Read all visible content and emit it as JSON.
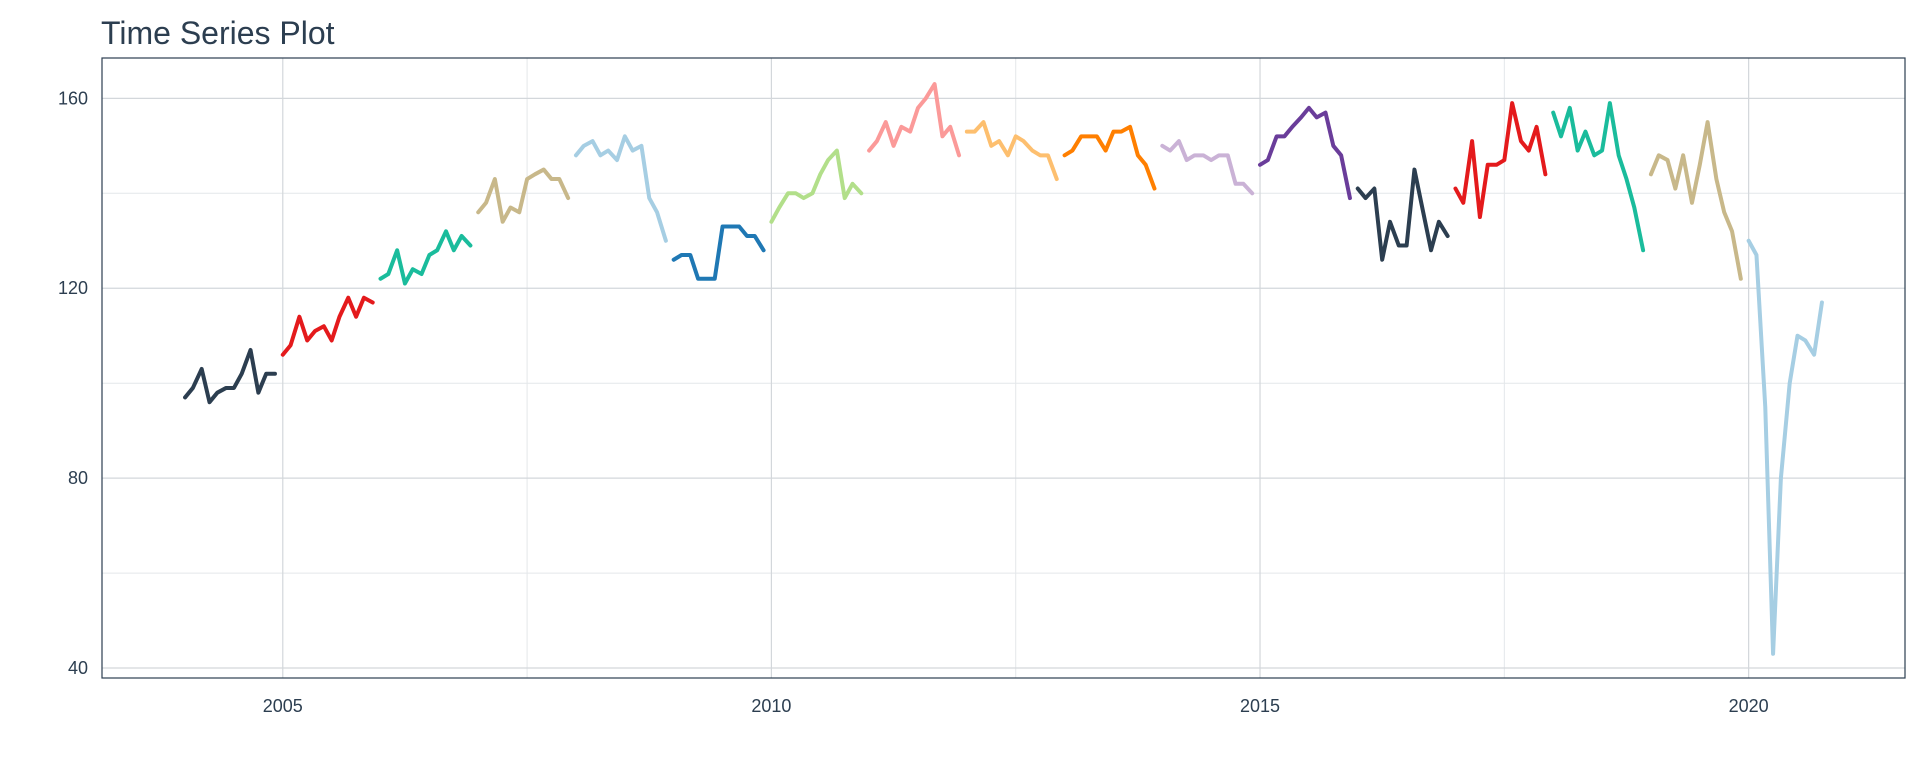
{
  "chart_data": {
    "type": "line",
    "title": "Time Series Plot",
    "xlim": [
      2003.15,
      2021.6
    ],
    "ylim": [
      37.9,
      168.5
    ],
    "xticks": [
      2005,
      2010,
      2015,
      2020
    ],
    "yticks": [
      40,
      80,
      120,
      160
    ],
    "grid": true,
    "series": [
      {
        "color": "#2c3e50",
        "x": [
          2004,
          2004.08,
          2004.17,
          2004.25,
          2004.33,
          2004.42,
          2004.5,
          2004.58,
          2004.67,
          2004.75,
          2004.83,
          2004.92
        ],
        "values": [
          97,
          99,
          103,
          96,
          98,
          99,
          99,
          102,
          107,
          98,
          102,
          102
        ]
      },
      {
        "color": "#e41a1c",
        "x": [
          2005,
          2005.08,
          2005.17,
          2005.25,
          2005.33,
          2005.42,
          2005.5,
          2005.58,
          2005.67,
          2005.75,
          2005.83,
          2005.92
        ],
        "values": [
          106,
          108,
          114,
          109,
          111,
          112,
          109,
          114,
          118,
          114,
          118,
          117
        ]
      },
      {
        "color": "#1abc9c",
        "x": [
          2006,
          2006.08,
          2006.17,
          2006.25,
          2006.33,
          2006.42,
          2006.5,
          2006.58,
          2006.67,
          2006.75,
          2006.83,
          2006.92
        ],
        "values": [
          122,
          123,
          128,
          121,
          124,
          123,
          127,
          128,
          132,
          128,
          131,
          129
        ]
      },
      {
        "color": "#c8b88a",
        "x": [
          2007,
          2007.08,
          2007.17,
          2007.25,
          2007.33,
          2007.42,
          2007.5,
          2007.58,
          2007.67,
          2007.75,
          2007.83,
          2007.92
        ],
        "values": [
          136,
          138,
          143,
          134,
          137,
          136,
          143,
          144,
          145,
          143,
          143,
          139
        ]
      },
      {
        "color": "#a6cee3",
        "x": [
          2008,
          2008.08,
          2008.17,
          2008.25,
          2008.33,
          2008.42,
          2008.5,
          2008.58,
          2008.67,
          2008.75,
          2008.83,
          2008.92
        ],
        "values": [
          148,
          150,
          151,
          148,
          149,
          147,
          152,
          149,
          150,
          139,
          136,
          130
        ]
      },
      {
        "color": "#1f78b4",
        "x": [
          2009,
          2009.08,
          2009.17,
          2009.25,
          2009.33,
          2009.42,
          2009.5,
          2009.58,
          2009.67,
          2009.75,
          2009.83,
          2009.92
        ],
        "values": [
          126,
          127,
          127,
          122,
          122,
          122,
          133,
          133,
          133,
          131,
          131,
          128
        ]
      },
      {
        "color": "#b2df8a",
        "x": [
          2010,
          2010.08,
          2010.17,
          2010.25,
          2010.33,
          2010.42,
          2010.5,
          2010.58,
          2010.67,
          2010.75,
          2010.83,
          2010.92
        ],
        "values": [
          134,
          137,
          140,
          140,
          139,
          140,
          144,
          147,
          149,
          139,
          142,
          140
        ]
      },
      {
        "color": "#fb9a99",
        "x": [
          2011,
          2011.08,
          2011.17,
          2011.25,
          2011.33,
          2011.42,
          2011.5,
          2011.58,
          2011.67,
          2011.75,
          2011.83,
          2011.92
        ],
        "values": [
          149,
          151,
          155,
          150,
          154,
          153,
          158,
          160,
          163,
          152,
          154,
          148
        ]
      },
      {
        "color": "#fdbf6f",
        "x": [
          2012,
          2012.08,
          2012.17,
          2012.25,
          2012.33,
          2012.42,
          2012.5,
          2012.58,
          2012.67,
          2012.75,
          2012.83,
          2012.92
        ],
        "values": [
          153,
          153,
          155,
          150,
          151,
          148,
          152,
          151,
          149,
          148,
          148,
          143
        ]
      },
      {
        "color": "#ff7f00",
        "x": [
          2013,
          2013.08,
          2013.17,
          2013.25,
          2013.33,
          2013.42,
          2013.5,
          2013.58,
          2013.67,
          2013.75,
          2013.83,
          2013.92
        ],
        "values": [
          148,
          149,
          152,
          152,
          152,
          149,
          153,
          153,
          154,
          148,
          146,
          141
        ]
      },
      {
        "color": "#cab2d6",
        "x": [
          2014,
          2014.08,
          2014.17,
          2014.25,
          2014.33,
          2014.42,
          2014.5,
          2014.58,
          2014.67,
          2014.75,
          2014.83,
          2014.92
        ],
        "values": [
          150,
          149,
          151,
          147,
          148,
          148,
          147,
          148,
          148,
          142,
          142,
          140
        ]
      },
      {
        "color": "#6a3d9a",
        "x": [
          2015,
          2015.08,
          2015.17,
          2015.25,
          2015.33,
          2015.42,
          2015.5,
          2015.58,
          2015.67,
          2015.75,
          2015.83,
          2015.92
        ],
        "values": [
          146,
          147,
          152,
          152,
          154,
          156,
          158,
          156,
          157,
          150,
          148,
          139
        ]
      },
      {
        "color": "#2c3e50",
        "x": [
          2016,
          2016.08,
          2016.17,
          2016.25,
          2016.33,
          2016.42,
          2016.5,
          2016.58,
          2016.67,
          2016.75,
          2016.83,
          2016.92
        ],
        "values": [
          141,
          139,
          141,
          126,
          134,
          129,
          129,
          145,
          136,
          128,
          134,
          131
        ]
      },
      {
        "color": "#e41a1c",
        "x": [
          2017,
          2017.08,
          2017.17,
          2017.25,
          2017.33,
          2017.42,
          2017.5,
          2017.58,
          2017.67,
          2017.75,
          2017.83,
          2017.92
        ],
        "values": [
          141,
          138,
          151,
          135,
          146,
          146,
          147,
          159,
          151,
          149,
          154,
          144
        ]
      },
      {
        "color": "#1abc9c",
        "x": [
          2018,
          2018.08,
          2018.17,
          2018.25,
          2018.33,
          2018.42,
          2018.5,
          2018.58,
          2018.67,
          2018.75,
          2018.83,
          2018.92
        ],
        "values": [
          157,
          152,
          158,
          149,
          153,
          148,
          149,
          159,
          148,
          143,
          137,
          128
        ]
      },
      {
        "color": "#c8b88a",
        "x": [
          2019,
          2019.08,
          2019.17,
          2019.25,
          2019.33,
          2019.42,
          2019.5,
          2019.58,
          2019.67,
          2019.75,
          2019.83,
          2019.92
        ],
        "values": [
          144,
          148,
          147,
          141,
          148,
          138,
          146,
          155,
          143,
          136,
          132,
          122
        ]
      },
      {
        "color": "#a6cee3",
        "x": [
          2020,
          2020.08,
          2020.17,
          2020.25,
          2020.33,
          2020.42,
          2020.5,
          2020.58,
          2020.67,
          2020.75
        ],
        "values": [
          130,
          127,
          95,
          43,
          80,
          100,
          110,
          109,
          106,
          117
        ]
      }
    ]
  }
}
